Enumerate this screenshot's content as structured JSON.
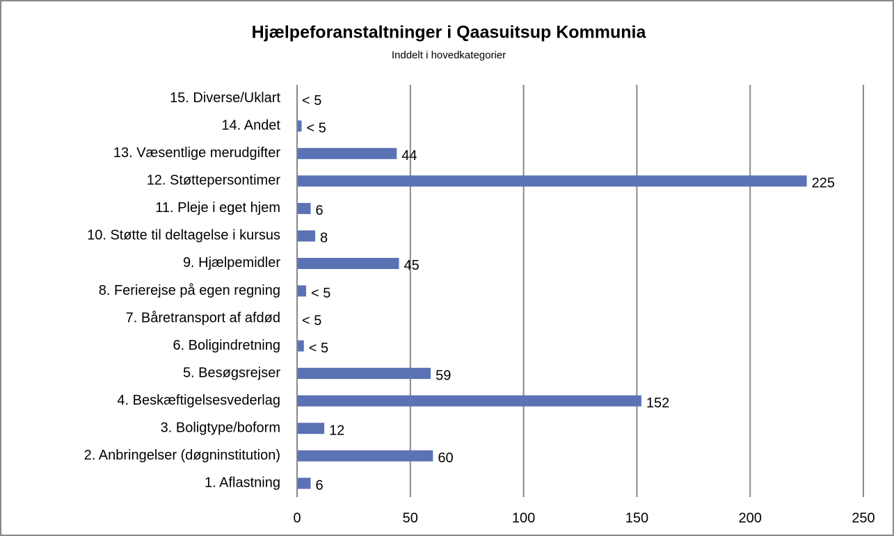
{
  "chart_data": {
    "type": "hbar",
    "title": "Hjælpeforanstaltninger i Qaasuitsup Kommunia",
    "subtitle": "Inddelt i hovedkategorier",
    "categories": [
      "1. Aflastning",
      "2. Anbringelser (døgninstitution)",
      "3. Boligtype/boform",
      "4. Beskæftigelsesvederlag",
      "5. Besøgsrejser",
      "6. Boligindretning",
      "7. Båretransport af afdød",
      "8. Ferierejse på egen regning",
      "9. Hjælpemidler",
      "10. Støtte til deltagelse i kursus",
      "11. Pleje i eget hjem",
      "12. Støttepersontimer",
      "13. Væsentlige merudgifter",
      "14. Andet",
      "15. Diverse/Uklart"
    ],
    "values": [
      6,
      60,
      12,
      152,
      59,
      3,
      0,
      4,
      45,
      8,
      6,
      225,
      44,
      2,
      0
    ],
    "value_labels": [
      "6",
      "60",
      "12",
      "152",
      "59",
      "< 5",
      "< 5",
      "< 5",
      "45",
      "8",
      "6",
      "225",
      "44",
      "< 5",
      "< 5"
    ],
    "color": "#5b72b4",
    "xlim": [
      0,
      250
    ],
    "xticks": [
      0,
      50,
      100,
      150,
      200,
      250
    ],
    "grid": true
  }
}
